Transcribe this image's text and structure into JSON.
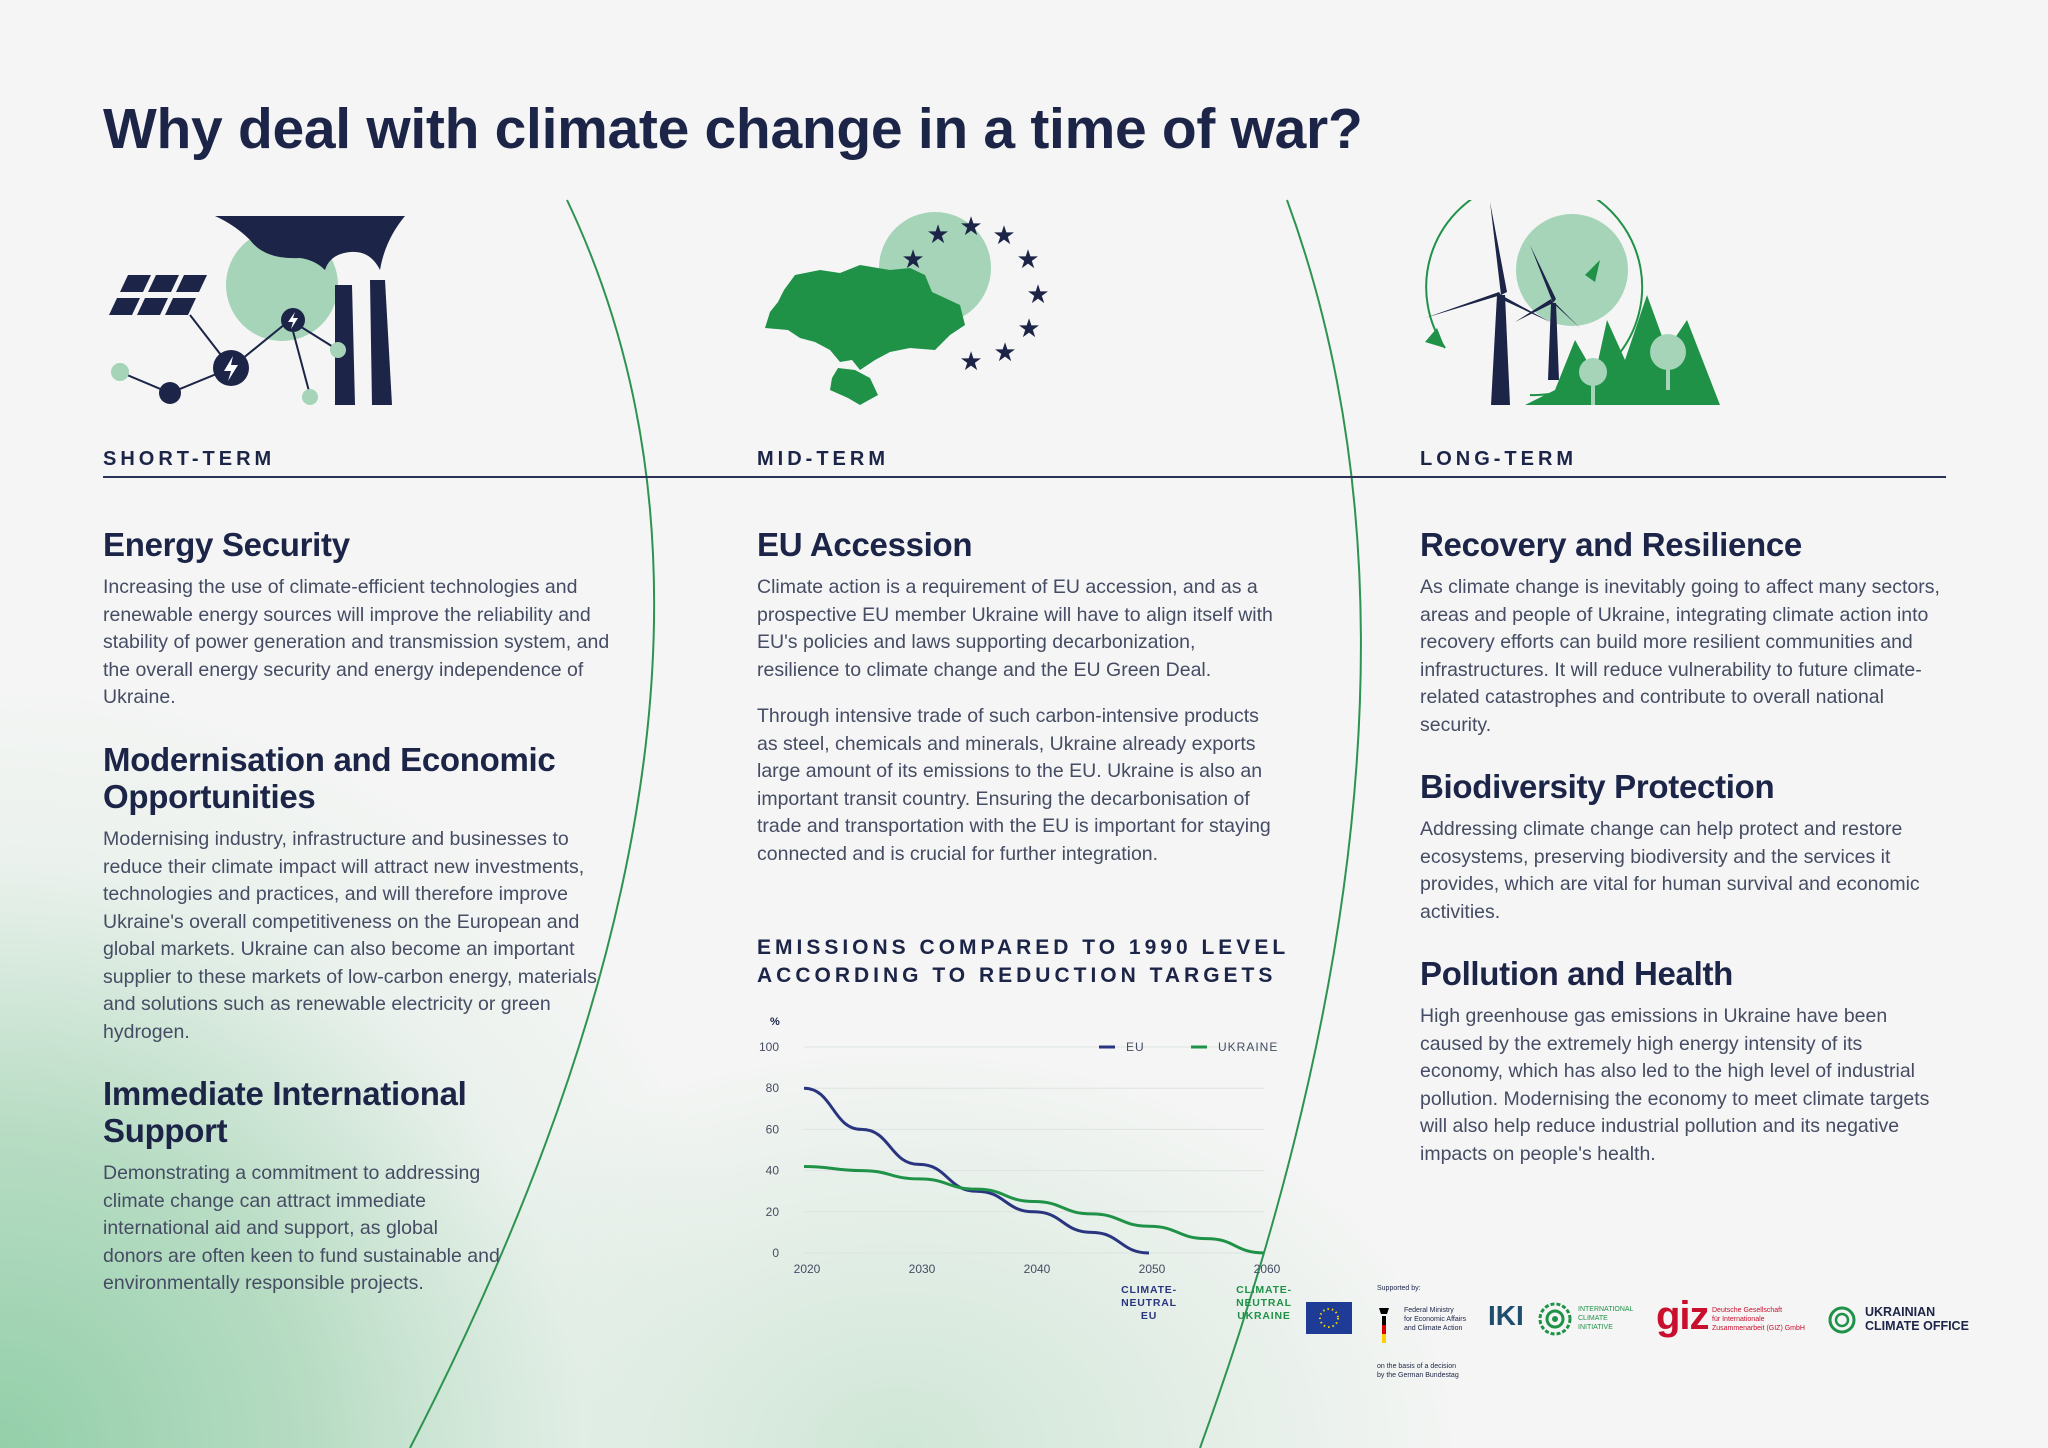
{
  "title": "Why deal with climate change in a time of war?",
  "columns": [
    {
      "term": "SHORT-TERM",
      "icon": "solar-power-plant-icon",
      "sections": [
        {
          "heading": "Energy Security",
          "text": "Increasing the use of climate-efficient technologies and renewable energy sources will improve the reliability and stability of power generation and transmission system, and the overall energy security and energy independence of Ukraine."
        },
        {
          "heading_lines": [
            "Modernisation and Economic",
            "Opportunities"
          ],
          "text": "Modernising industry, infrastructure and businesses to reduce their climate impact will attract new investments, technologies and practices, and will therefore improve Ukraine's overall competitiveness on the European and global markets. Ukraine can also become an important supplier to these markets of low-carbon energy, materials and solutions such as renewable electricity or green hydrogen."
        },
        {
          "heading_lines": [
            "Immediate International",
            "Support"
          ],
          "text": "Demonstrating a commitment to addressing climate change can attract immediate international aid and support, as global donors are often keen to fund sustainable and environmentally responsible projects."
        }
      ]
    },
    {
      "term": "MID-TERM",
      "icon": "ukraine-eu-stars-icon",
      "sections": [
        {
          "heading": "EU Accession",
          "text": "Climate action is a requirement of EU accession, and as a prospective EU member Ukraine will have to align itself with EU's policies and laws supporting decarbonization, resilience to climate change and the EU Green Deal.",
          "text2": "Through intensive trade of such carbon-intensive products as steel, chemicals and minerals, Ukraine already exports large amount of its emissions to the EU. Ukraine is also an important transit country. Ensuring the decarbonisation of trade and transportation with the EU is important for staying connected and is crucial for further integration."
        }
      ]
    },
    {
      "term": "LONG-TERM",
      "icon": "wind-turbine-forest-icon",
      "sections": [
        {
          "heading": "Recovery and Resilience",
          "text": "As climate change is inevitably going to affect many sectors, areas and people of Ukraine, integrating climate action into recovery efforts can build more resilient communities and infrastructures. It will reduce vulnerability to future climate-related catastrophes and contribute to overall national security."
        },
        {
          "heading": "Biodiversity Protection",
          "text": "Addressing climate change can help protect and restore ecosystems, preserving biodiversity and the services it provides, which are vital for human survival and economic activities."
        },
        {
          "heading": "Pollution and Health",
          "text": "High greenhouse gas emissions in Ukraine have been caused by the extremely high energy intensity of its economy, which has also led to the high level of industrial pollution. Modernising the economy to meet climate targets will also help reduce industrial pollution and its negative impacts on people's health."
        }
      ]
    }
  ],
  "chart_data": {
    "type": "line",
    "title_lines": [
      "EMISSIONS COMPARED TO 1990 LEVEL",
      "ACCORDING TO REDUCTION TARGETS"
    ],
    "ylabel": "%",
    "ylim": [
      0,
      100
    ],
    "yticks": [
      "0",
      "20",
      "40",
      "60",
      "80",
      "100"
    ],
    "xlim": [
      2020,
      2060
    ],
    "xticks": [
      "2020",
      "2030",
      "2040",
      "2050",
      "2060"
    ],
    "grid": true,
    "legend_position": "top-right",
    "series": [
      {
        "name": "EU",
        "color": "#2a3580",
        "x": [
          2020,
          2025,
          2030,
          2035,
          2040,
          2045,
          2050
        ],
        "y": [
          80,
          60,
          43,
          30,
          20,
          10,
          0
        ]
      },
      {
        "name": "UKRAINE",
        "color": "#1f9248",
        "x": [
          2020,
          2025,
          2030,
          2035,
          2040,
          2045,
          2050,
          2055,
          2060
        ],
        "y": [
          42,
          40,
          36,
          31,
          25,
          19,
          13,
          7,
          0
        ]
      }
    ],
    "annotations": [
      {
        "x": 2050,
        "lines": [
          "CLIMATE-",
          "NEUTRAL",
          "EU"
        ],
        "color": "#2a3580"
      },
      {
        "x": 2060,
        "lines": [
          "CLIMATE-",
          "NEUTRAL",
          "UKRAINE"
        ],
        "color": "#1f9248"
      }
    ]
  },
  "logos": {
    "supported_by": "Supported by:",
    "ministry": [
      "Federal Ministry",
      "for Economic Affairs",
      "and Climate Action"
    ],
    "bundestag_note": [
      "on the basis of a decision",
      "by the German Bundestag"
    ],
    "iki": "IKI",
    "iki_text": [
      "INTERNATIONAL",
      "CLIMATE",
      "INITIATIVE"
    ],
    "giz": "giz",
    "giz_text": [
      "Deutsche Gesellschaft",
      "für Internationale",
      "Zusammenarbeit (GIZ) GmbH"
    ],
    "uco": [
      "UKRAINIAN",
      "CLIMATE OFFICE"
    ]
  },
  "colors": {
    "navy": "#1c2447",
    "green": "#1f9248",
    "light_green": "#a5d4b8",
    "giz_red": "#c8102e"
  }
}
